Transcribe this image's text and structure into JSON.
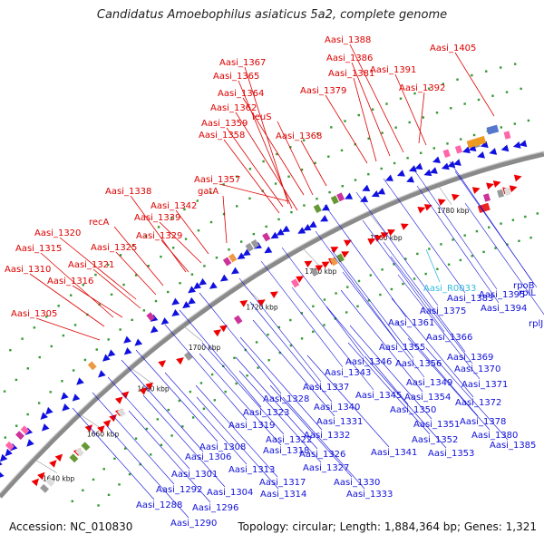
{
  "title": "Candidatus Amoebophilus asiaticus 5a2, complete genome",
  "accession": "Accession: NC_010830",
  "topology": "Topology: circular; Length: 1,884,364 bp; Genes: 1,321",
  "colors": {
    "forward_label": "#dd0000",
    "reverse_label": "#1010d8",
    "rna_label": "#33bbdd",
    "backbone": "#8a8a8a",
    "forward_feature": "#ee0000",
    "reverse_feature": "#1010e0",
    "tick_dots": "#339933"
  },
  "scale_labels": [
    {
      "text": "1640 kbp"
    },
    {
      "text": "1660 kbp"
    },
    {
      "text": "1680 kbp"
    },
    {
      "text": "1700 kbp"
    },
    {
      "text": "1720 kbp"
    },
    {
      "text": "1740 kbp"
    },
    {
      "text": "1760 kbp"
    },
    {
      "text": "1780 kbp"
    }
  ],
  "forward_labels": [
    "Aasi_1388",
    "Aasi_1405",
    "Aasi_1386",
    "Aasi_1367",
    "Aasi_1391",
    "Aasi_1381",
    "Aasi_1365",
    "Aasi_1392",
    "Aasi_1379",
    "Aasi_1364",
    "Aasi_1362",
    "leuS",
    "Aasi_1359",
    "Aasi_1358",
    "Aasi_1368",
    "Aasi_1357",
    "Aasi_1338",
    "gatA",
    "Aasi_1342",
    "Aasi_1339",
    "recA",
    "Aasi_1320",
    "Aasi_1329",
    "Aasi_1315",
    "Aasi_1325",
    "Aasi_1321",
    "Aasi_1310",
    "Aasi_1316",
    "Aasi_1305"
  ],
  "reverse_labels": [
    "rpoB",
    "Aasi_1395",
    "Aasi_1394",
    "rplL",
    "rplJ",
    "Aasi_1383",
    "Aasi_1375",
    "Aasi_1361",
    "Aasi_1366",
    "Aasi_1355",
    "Aasi_1369",
    "Aasi_1346",
    "Aasi_1356",
    "Aasi_1370",
    "Aasi_1343",
    "Aasi_1349",
    "Aasi_1371",
    "Aasi_1337",
    "Aasi_1345",
    "Aasi_1354",
    "Aasi_1328",
    "Aasi_1340",
    "Aasi_1372",
    "Aasi_1350",
    "Aasi_1323",
    "Aasi_1331",
    "Aasi_1319",
    "Aasi_1378",
    "Aasi_1351",
    "Aasi_1332",
    "Aasi_1322",
    "Aasi_1380",
    "Aasi_1308",
    "Aasi_1318",
    "Aasi_1352",
    "Aasi_1385",
    "Aasi_1306",
    "Aasi_1326",
    "Aasi_1341",
    "Aasi_1353",
    "Aasi_1313",
    "Aasi_1327",
    "Aasi_1301",
    "Aasi_1317",
    "Aasi_1330",
    "Aasi_1292",
    "Aasi_1304",
    "Aasi_1314",
    "Aasi_1333",
    "Aasi_1296",
    "Aasi_1288",
    "Aasi_1290"
  ],
  "rna_labels": [
    "Aasi_R0033"
  ]
}
